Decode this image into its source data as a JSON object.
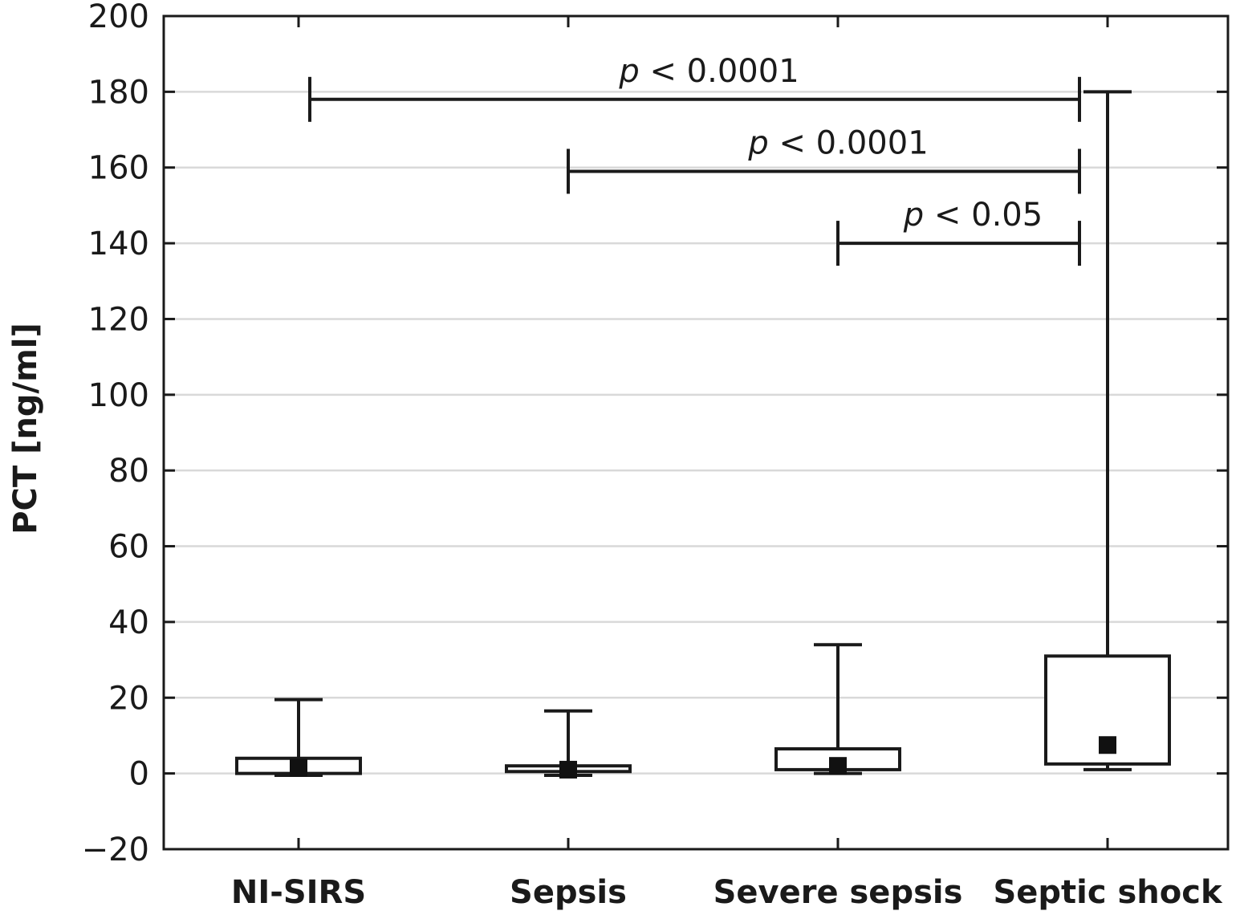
{
  "chart_data": {
    "type": "box",
    "ylabel": "PCT [ng/ml]",
    "xlabel": "",
    "ylim": [
      -20,
      200
    ],
    "yticks": [
      -20,
      0,
      20,
      40,
      60,
      80,
      100,
      120,
      140,
      160,
      180,
      200
    ],
    "ytick_labels": [
      "−20",
      "0",
      "20",
      "40",
      "60",
      "80",
      "100",
      "120",
      "140",
      "160",
      "180",
      "200"
    ],
    "grid": "horizontal",
    "categories": [
      "NI-SIRS",
      "Sepsis",
      "Severe sepsis",
      "Septic shock"
    ],
    "boxes": [
      {
        "category": "NI-SIRS",
        "whisker_low": -0.5,
        "q1": 0,
        "median": 1.5,
        "q3": 4,
        "whisker_high": 19.5
      },
      {
        "category": "Sepsis",
        "whisker_low": -0.5,
        "q1": 0.5,
        "median": 1,
        "q3": 2,
        "whisker_high": 16.5
      },
      {
        "category": "Severe sepsis",
        "whisker_low": 0,
        "q1": 1,
        "median": 2,
        "q3": 6.5,
        "whisker_high": 34
      },
      {
        "category": "Septic shock",
        "whisker_low": 1,
        "q1": 2.5,
        "median": 7.5,
        "q3": 31,
        "whisker_high": 180
      }
    ],
    "annotations": [
      {
        "from": "NI-SIRS",
        "to": "Septic shock",
        "y": 178,
        "p_symbol": "p",
        "text": "< 0.0001"
      },
      {
        "from": "Sepsis",
        "to": "Septic shock",
        "y": 159,
        "p_symbol": "p",
        "text": "< 0.0001"
      },
      {
        "from": "Severe sepsis",
        "to": "Septic shock",
        "y": 140,
        "p_symbol": "p",
        "text": "< 0.05"
      }
    ]
  }
}
